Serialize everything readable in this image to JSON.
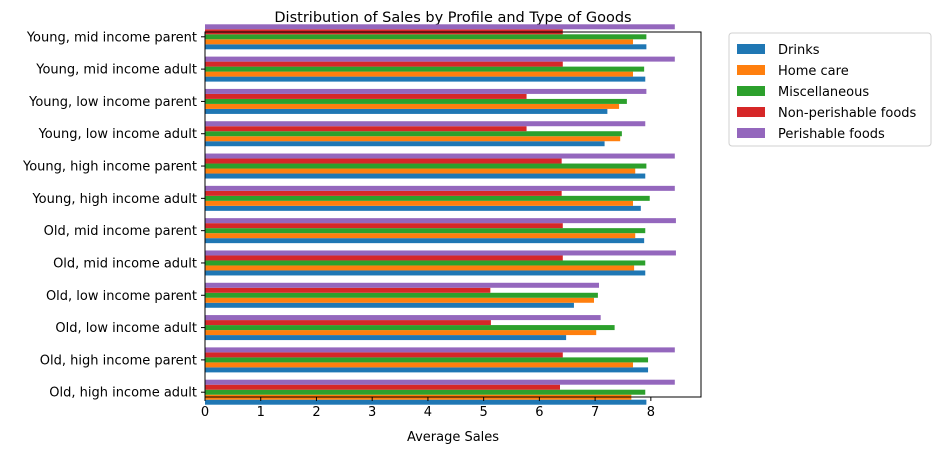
{
  "chart_data": {
    "type": "bar",
    "orientation": "horizontal",
    "title": "Distribution of Sales by Profile and Type of Goods",
    "xlabel": "Average Sales",
    "ylabel": "",
    "xlim": [
      0,
      8.9
    ],
    "xticks": [
      "0",
      "1",
      "2",
      "3",
      "4",
      "5",
      "6",
      "7",
      "8"
    ],
    "legend_position": "outside-top-right",
    "grid": false,
    "categories": [
      "Old, high income adult",
      "Old, high income parent",
      "Old, low income adult",
      "Old, low income parent",
      "Old, mid income adult",
      "Old, mid income parent",
      "Young, high income adult",
      "Young, high income parent",
      "Young, low income adult",
      "Young, low income parent",
      "Young, mid income adult",
      "Young, mid income parent"
    ],
    "series": [
      {
        "name": "Drinks",
        "color": "#1f77b4",
        "values": [
          7.92,
          7.95,
          6.48,
          6.62,
          7.9,
          7.88,
          7.82,
          7.9,
          7.17,
          7.22,
          7.9,
          7.92
        ]
      },
      {
        "name": "Home care",
        "color": "#ff7f0e",
        "values": [
          7.65,
          7.68,
          7.02,
          6.98,
          7.7,
          7.72,
          7.68,
          7.72,
          7.45,
          7.43,
          7.68,
          7.68
        ]
      },
      {
        "name": "Miscellaneous",
        "color": "#2ca02c",
        "values": [
          7.9,
          7.95,
          7.35,
          7.05,
          7.9,
          7.9,
          7.98,
          7.92,
          7.48,
          7.57,
          7.88,
          7.92
        ]
      },
      {
        "name": "Non-perishable foods",
        "color": "#d62728",
        "values": [
          6.37,
          6.42,
          5.13,
          5.12,
          6.42,
          6.42,
          6.4,
          6.4,
          5.77,
          5.77,
          6.42,
          6.42
        ]
      },
      {
        "name": "Perishable foods",
        "color": "#9467bd",
        "values": [
          8.43,
          8.43,
          7.1,
          7.07,
          8.45,
          8.45,
          8.43,
          8.43,
          7.9,
          7.92,
          8.43,
          8.43
        ]
      }
    ]
  }
}
